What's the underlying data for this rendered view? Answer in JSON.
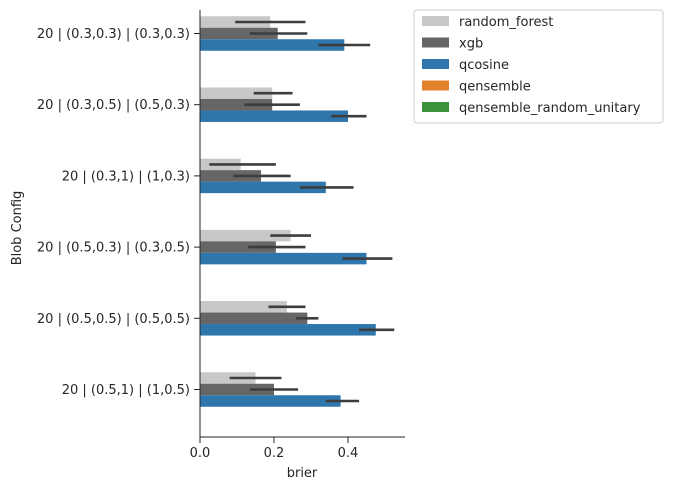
{
  "chart_data": {
    "type": "bar",
    "orientation": "horizontal",
    "title": "",
    "xlabel": "brier",
    "ylabel": "Blob Config",
    "xlim": [
      0,
      0.55
    ],
    "xticks": [
      "0.0",
      "0.2",
      "0.4"
    ],
    "xtick_values": [
      0.0,
      0.2,
      0.4
    ],
    "grid": false,
    "legend_position": "upper-right-outside",
    "categories": [
      "20 | (0.3,0.3) | (0.3,0.3)",
      "20 | (0.3,0.5) | (0.5,0.3)",
      "20 | (0.3,1) | (1,0.3)",
      "20 | (0.5,0.3) | (0.3,0.5)",
      "20 | (0.5,0.5) | (0.5,0.5)",
      "20 | (0.5,1) | (1,0.5)"
    ],
    "series": [
      {
        "name": "random_forest",
        "color": "#c8c8c8",
        "values": [
          0.19,
          0.195,
          0.11,
          0.245,
          0.235,
          0.15
        ],
        "err_low": [
          0.095,
          0.145,
          0.025,
          0.19,
          0.185,
          0.08
        ],
        "err_high": [
          0.285,
          0.25,
          0.205,
          0.3,
          0.285,
          0.22
        ]
      },
      {
        "name": "xgb",
        "color": "#666666",
        "values": [
          0.21,
          0.195,
          0.165,
          0.205,
          0.29,
          0.2
        ],
        "err_low": [
          0.135,
          0.12,
          0.09,
          0.13,
          0.26,
          0.135
        ],
        "err_high": [
          0.29,
          0.27,
          0.245,
          0.285,
          0.32,
          0.265
        ]
      },
      {
        "name": "qcosine",
        "color": "#2f76ac",
        "values": [
          0.39,
          0.4,
          0.34,
          0.45,
          0.475,
          0.38
        ],
        "err_low": [
          0.32,
          0.355,
          0.27,
          0.385,
          0.43,
          0.34
        ],
        "err_high": [
          0.46,
          0.45,
          0.415,
          0.52,
          0.525,
          0.43
        ]
      },
      {
        "name": "qensemble",
        "color": "#e1812c",
        "values": [
          null,
          null,
          null,
          null,
          null,
          null
        ]
      },
      {
        "name": "qensemble_random_unitary",
        "color": "#3a923a",
        "values": [
          null,
          null,
          null,
          null,
          null,
          null
        ]
      }
    ]
  }
}
